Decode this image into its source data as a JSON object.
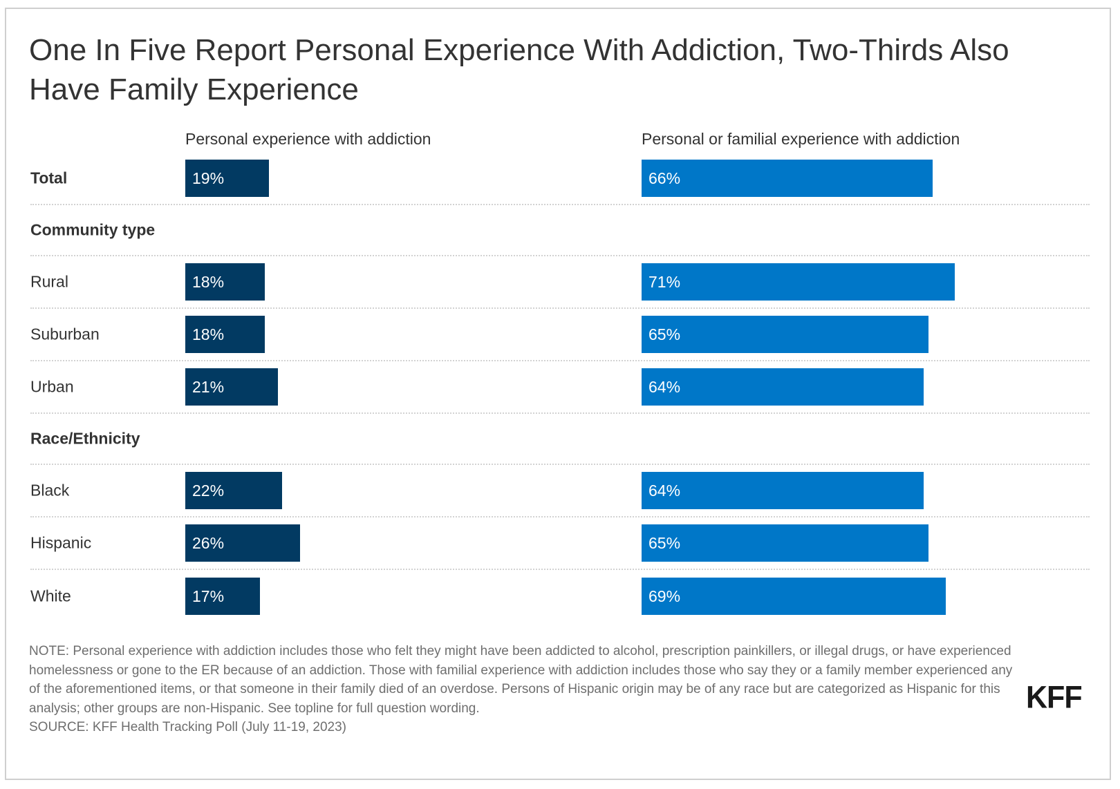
{
  "title": "One In Five Report Personal Experience With Addiction, Two-Thirds Also Have Family Experience",
  "colors": {
    "personal": "#023a62",
    "familial": "#0077c8",
    "separator": "#d2d2d2"
  },
  "chart_data": {
    "type": "bar",
    "orientation": "horizontal",
    "title": "One In Five Report Personal Experience With Addiction, Two-Thirds Also Have Family Experience",
    "xlim": [
      0,
      100
    ],
    "grid": false,
    "series": [
      {
        "name": "Personal experience with addiction",
        "color": "#023a62"
      },
      {
        "name": "Personal or familial experience with addiction",
        "color": "#0077c8"
      }
    ],
    "rows": [
      {
        "label": "Total",
        "type": "data",
        "bold": true,
        "values": [
          19,
          66
        ],
        "labels": [
          "19%",
          "66%"
        ]
      },
      {
        "label": "Community type",
        "type": "section"
      },
      {
        "label": "Rural",
        "type": "data",
        "values": [
          18,
          71
        ],
        "labels": [
          "18%",
          "71%"
        ]
      },
      {
        "label": "Suburban",
        "type": "data",
        "values": [
          18,
          65
        ],
        "labels": [
          "18%",
          "65%"
        ]
      },
      {
        "label": "Urban",
        "type": "data",
        "values": [
          21,
          64
        ],
        "labels": [
          "21%",
          "64%"
        ]
      },
      {
        "label": "Race/Ethnicity",
        "type": "section"
      },
      {
        "label": "Black",
        "type": "data",
        "values": [
          22,
          64
        ],
        "labels": [
          "22%",
          "64%"
        ]
      },
      {
        "label": "Hispanic",
        "type": "data",
        "values": [
          26,
          65
        ],
        "labels": [
          "26%",
          "65%"
        ]
      },
      {
        "label": "White",
        "type": "data",
        "values": [
          17,
          69
        ],
        "labels": [
          "17%",
          "69%"
        ]
      }
    ]
  },
  "note": "NOTE: Personal experience with addiction includes those who felt they might have been addicted to alcohol, prescription painkillers, or illegal drugs, or have experienced homelessness or gone to the ER because of an addiction. Those with familial experience with addiction includes those who say they or a family member experienced any of the aforementioned items, or that someone in their family died of an overdose. Persons of Hispanic origin may be of any race but are categorized as Hispanic for this analysis; other groups are non-Hispanic. See topline for full question wording.",
  "source": "SOURCE: KFF Health Tracking Poll (July 11-19, 2023)",
  "logo": "KFF"
}
